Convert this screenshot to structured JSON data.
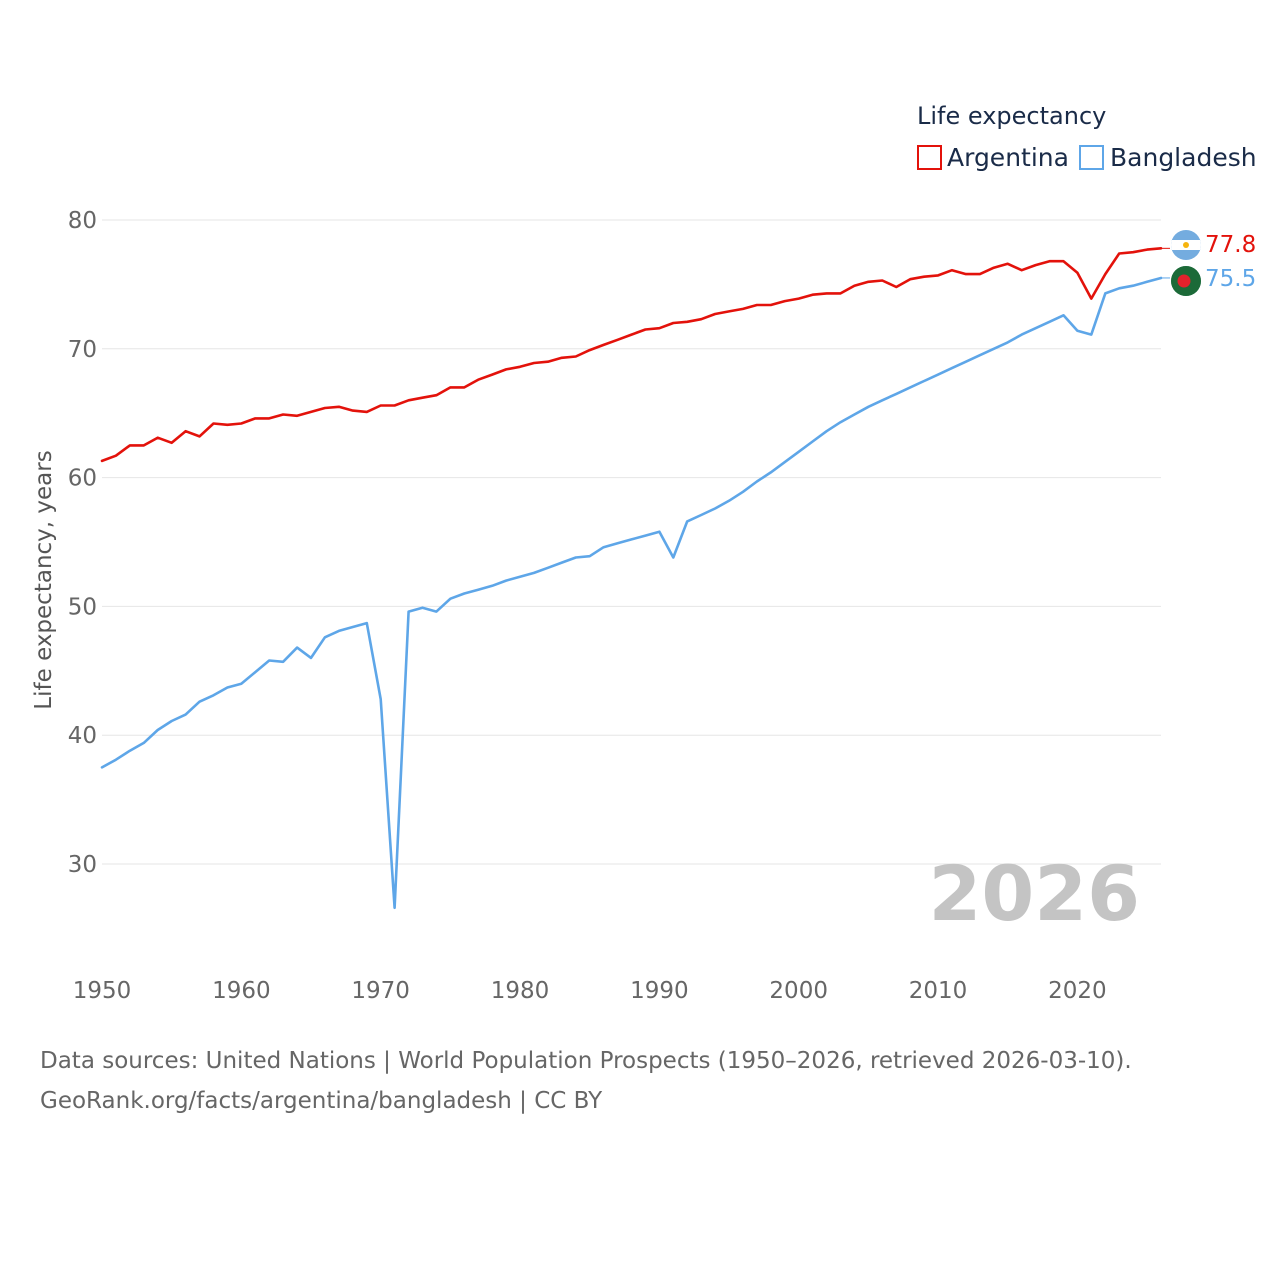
{
  "chart_data": {
    "type": "line",
    "title": "",
    "legend_title": "Life expectancy",
    "ylabel": "Life expectancy, years",
    "xlabel": "",
    "xlim": [
      1950,
      2026
    ],
    "ylim": [
      24,
      82
    ],
    "x_ticks": [
      1950,
      1960,
      1970,
      1980,
      1990,
      2000,
      2010,
      2020
    ],
    "y_ticks": [
      30,
      40,
      50,
      60,
      70,
      80
    ],
    "grid": true,
    "legend_position": "top-right",
    "year_label": "2026",
    "x": [
      1950,
      1951,
      1952,
      1953,
      1954,
      1955,
      1956,
      1957,
      1958,
      1959,
      1960,
      1961,
      1962,
      1963,
      1964,
      1965,
      1966,
      1967,
      1968,
      1969,
      1970,
      1971,
      1972,
      1973,
      1974,
      1975,
      1976,
      1977,
      1978,
      1979,
      1980,
      1981,
      1982,
      1983,
      1984,
      1985,
      1986,
      1987,
      1988,
      1989,
      1990,
      1991,
      1992,
      1993,
      1994,
      1995,
      1996,
      1997,
      1998,
      1999,
      2000,
      2001,
      2002,
      2003,
      2004,
      2005,
      2006,
      2007,
      2008,
      2009,
      2010,
      2011,
      2012,
      2013,
      2014,
      2015,
      2016,
      2017,
      2018,
      2019,
      2020,
      2021,
      2022,
      2023,
      2024,
      2025,
      2026
    ],
    "series": [
      {
        "name": "Argentina",
        "color": "#e3120b",
        "end_label": "77.8",
        "values": [
          61.3,
          61.7,
          62.5,
          62.5,
          63.1,
          62.7,
          63.6,
          63.2,
          64.2,
          64.1,
          64.2,
          64.6,
          64.6,
          64.9,
          64.8,
          65.1,
          65.4,
          65.5,
          65.2,
          65.1,
          65.6,
          65.6,
          66.0,
          66.2,
          66.4,
          67.0,
          67.0,
          67.6,
          68.0,
          68.4,
          68.6,
          68.9,
          69.0,
          69.3,
          69.4,
          69.9,
          70.3,
          70.7,
          71.1,
          71.5,
          71.6,
          72.0,
          72.1,
          72.3,
          72.7,
          72.9,
          73.1,
          73.4,
          73.4,
          73.7,
          73.9,
          74.2,
          74.3,
          74.3,
          74.9,
          75.2,
          75.3,
          74.8,
          75.4,
          75.6,
          75.7,
          76.1,
          75.8,
          75.8,
          76.3,
          76.6,
          76.1,
          76.5,
          76.8,
          76.8,
          75.9,
          73.9,
          75.8,
          77.4,
          77.5,
          77.7,
          77.8
        ]
      },
      {
        "name": "Bangladesh",
        "color": "#5ea6e8",
        "end_label": "75.5",
        "values": [
          37.5,
          38.1,
          38.8,
          39.4,
          40.4,
          41.1,
          41.6,
          42.6,
          43.1,
          43.7,
          44.0,
          44.9,
          45.8,
          45.7,
          46.8,
          46.0,
          47.6,
          48.1,
          48.4,
          48.7,
          42.8,
          26.6,
          49.6,
          49.9,
          49.6,
          50.6,
          51.0,
          51.3,
          51.6,
          52.0,
          52.3,
          52.6,
          53.0,
          53.4,
          53.8,
          53.9,
          54.6,
          54.9,
          55.2,
          55.5,
          55.8,
          53.8,
          56.6,
          57.1,
          57.6,
          58.2,
          58.9,
          59.7,
          60.4,
          61.2,
          62.0,
          62.8,
          63.6,
          64.3,
          64.9,
          65.5,
          66.0,
          66.5,
          67.0,
          67.5,
          68.0,
          68.5,
          69.0,
          69.5,
          70.0,
          70.5,
          71.1,
          71.6,
          72.1,
          72.6,
          71.4,
          71.1,
          74.3,
          74.7,
          74.9,
          75.2,
          75.5
        ]
      }
    ]
  },
  "footer": {
    "line1": "Data sources: United Nations | World Population Prospects (1950–2026, retrieved 2026-03-10).",
    "line2": "GeoRank.org/facts/argentina/bangladesh | CC BY"
  },
  "icons": {
    "argentina": "argentina-flag-icon",
    "bangladesh": "bangladesh-flag-icon"
  }
}
